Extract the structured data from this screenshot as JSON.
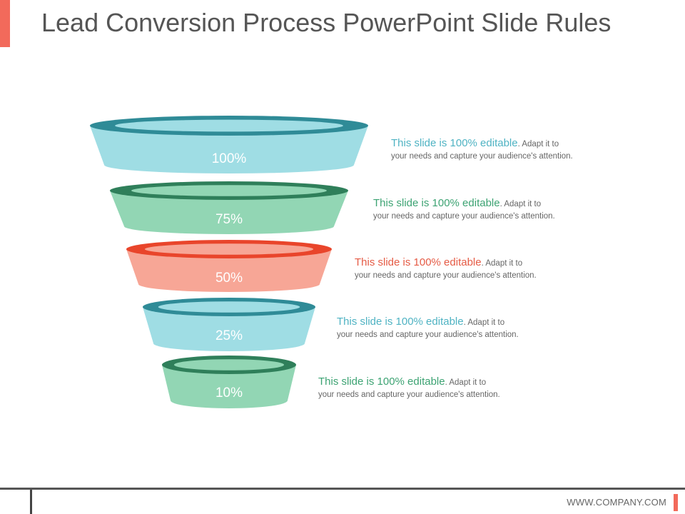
{
  "title": "Lead Conversion Process PowerPoint Slide Rules",
  "footer": {
    "url": "WWW.COMPANY.COM"
  },
  "tiers": [
    {
      "label": "100%",
      "headline": "This slide is 100% editable",
      "body_first": ". Adapt it to",
      "body_second": "your needs and capture your audience's attention.",
      "colors": {
        "body": "#9fdde4",
        "rim": "#2f8b97",
        "inner": "#9fdde4",
        "text": "#4fb3c3"
      }
    },
    {
      "label": "75%",
      "headline": "This slide is 100% editable",
      "body_first": ". Adapt it to",
      "body_second": "your needs and capture your audience's attention.",
      "colors": {
        "body": "#92d6b4",
        "rim": "#2f7f5a",
        "inner": "#92d6b4",
        "text": "#3da373"
      }
    },
    {
      "label": "50%",
      "headline": "This slide is 100% editable",
      "body_first": ". Adapt it to",
      "body_second": "your needs and capture your audience's attention.",
      "colors": {
        "body": "#f7a696",
        "rim": "#e9452b",
        "inner": "#f7a696",
        "text": "#e55b45"
      }
    },
    {
      "label": "25%",
      "headline": "This slide is 100% editable",
      "body_first": ". Adapt it to",
      "body_second": "your needs and capture your audience's attention.",
      "colors": {
        "body": "#9fdde4",
        "rim": "#2f8b97",
        "inner": "#9fdde4",
        "text": "#4fb3c3"
      }
    },
    {
      "label": "10%",
      "headline": "This slide is 100% editable",
      "body_first": ". Adapt it to",
      "body_second": "your needs and capture your audience's attention.",
      "colors": {
        "body": "#92d6b4",
        "rim": "#2f7f5a",
        "inner": "#92d6b4",
        "text": "#3da373"
      }
    }
  ]
}
